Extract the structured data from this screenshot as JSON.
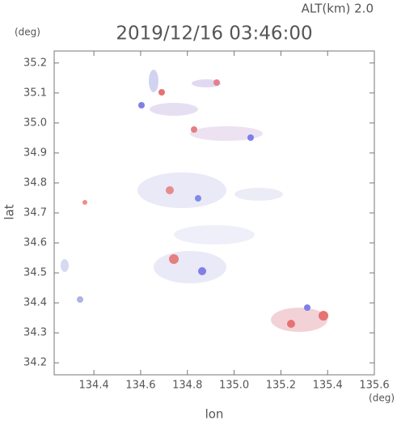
{
  "chart_data": {
    "type": "map",
    "title": "2019/12/16 03:46:00",
    "subtitle": "ALT(km) 2.0",
    "y_unit": "(deg)",
    "x_unit": "(deg)",
    "y_label": "lat",
    "x_label": "lon",
    "xlim": [
      134.23,
      135.6
    ],
    "xticks": [
      134.4,
      134.6,
      134.8,
      {
        "value": 135.0,
        "label": "135.0"
      },
      135.2,
      135.4,
      135.6
    ],
    "ylim": [
      34.16,
      35.24
    ],
    "yticks": [
      34.2,
      34.3,
      34.4,
      34.5,
      34.6,
      34.7,
      34.8,
      34.9,
      {
        "value": 35.0,
        "label": "35.0"
      },
      35.1,
      35.2
    ]
  }
}
